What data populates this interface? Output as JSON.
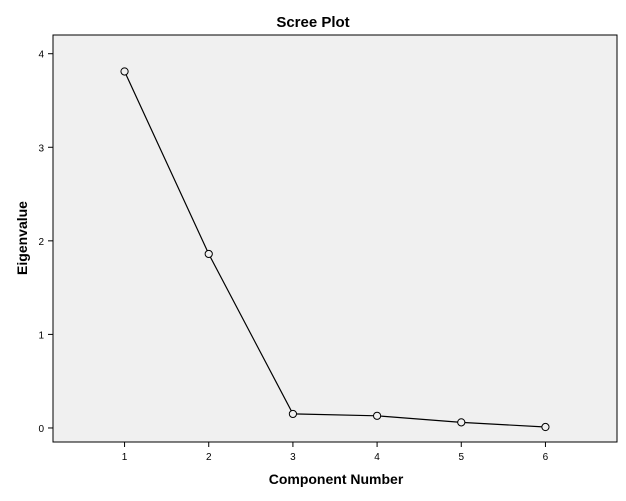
{
  "chart_data": {
    "type": "line",
    "title": "Scree Plot",
    "xlabel": "Component Number",
    "ylabel": "Eigenvalue",
    "x": [
      1,
      2,
      3,
      4,
      5,
      6
    ],
    "x_tick_labels": [
      "1",
      "2",
      "3",
      "4",
      "5",
      "6"
    ],
    "y_tick_labels": [
      "0",
      "1",
      "2",
      "3",
      "4"
    ],
    "y_ticks": [
      0,
      1,
      2,
      3,
      4
    ],
    "series": [
      {
        "values": [
          3.81,
          1.86,
          0.15,
          0.13,
          0.06,
          0.01
        ]
      }
    ],
    "xlim": [
      0.15,
      6.85
    ],
    "ylim": [
      -0.15,
      4.2
    ],
    "grid": false,
    "marker": "open-circle",
    "colors": {
      "plot_background": "#f0f0f0",
      "line": "#000000",
      "frame": "#000000"
    }
  }
}
